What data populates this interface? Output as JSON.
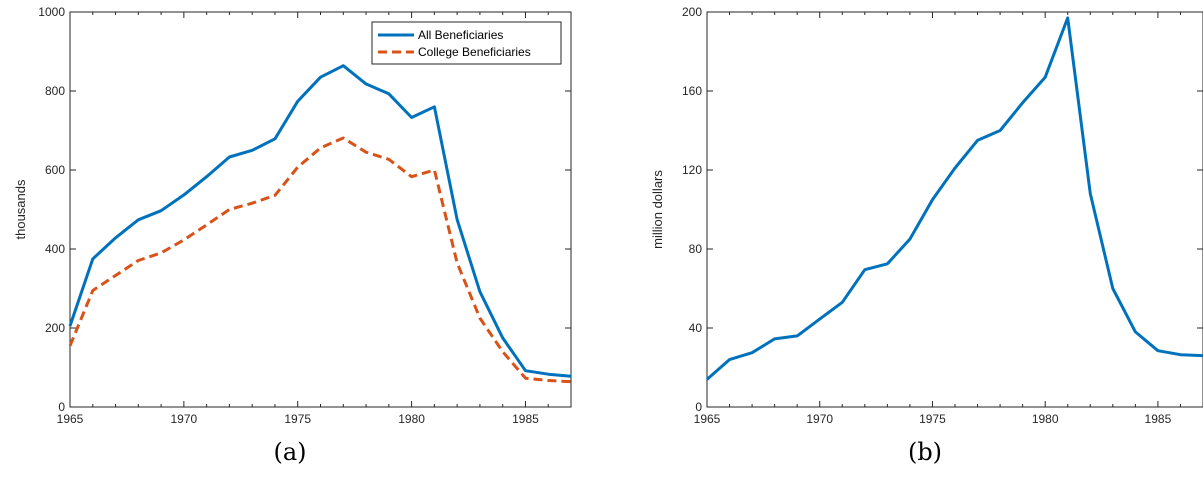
{
  "chart_data": [
    {
      "type": "line",
      "panel_label": "(a)",
      "ylabel": "thousands",
      "xlim": [
        1965,
        1987
      ],
      "ylim": [
        0,
        1000
      ],
      "xticks": [
        "1965",
        "1970",
        "1975",
        "1980",
        "1985"
      ],
      "yticks": [
        "0",
        "200",
        "400",
        "600",
        "800",
        "1000"
      ],
      "legend_position": "top-right",
      "x": [
        1965,
        1966,
        1967,
        1968,
        1969,
        1970,
        1971,
        1972,
        1973,
        1974,
        1975,
        1976,
        1977,
        1978,
        1979,
        1980,
        1981,
        1982,
        1983,
        1984,
        1985,
        1986,
        1987
      ],
      "series": [
        {
          "name": "All Beneficiaries",
          "color": "#0072BD",
          "style": "solid",
          "values": [
            205,
            375,
            428,
            474,
            497,
            537,
            583,
            633,
            650,
            679,
            774,
            835,
            864,
            818,
            793,
            733,
            760,
            475,
            292,
            175,
            92,
            83,
            78
          ]
        },
        {
          "name": "College Beneficiaries",
          "color": "#D95319",
          "style": "dashed",
          "values": [
            155,
            295,
            333,
            371,
            390,
            423,
            461,
            500,
            516,
            536,
            607,
            656,
            681,
            645,
            627,
            583,
            600,
            365,
            225,
            140,
            73,
            67,
            64
          ]
        }
      ]
    },
    {
      "type": "line",
      "panel_label": "(b)",
      "ylabel": "million dollars",
      "xlim": [
        1965,
        1987
      ],
      "ylim": [
        0,
        200
      ],
      "xticks": [
        "1965",
        "1970",
        "1975",
        "1980",
        "1985"
      ],
      "yticks": [
        "0",
        "40",
        "80",
        "120",
        "160",
        "200"
      ],
      "x": [
        1965,
        1966,
        1967,
        1968,
        1969,
        1970,
        1971,
        1972,
        1973,
        1974,
        1975,
        1976,
        1977,
        1978,
        1979,
        1980,
        1981,
        1982,
        1983,
        1984,
        1985,
        1986,
        1987
      ],
      "series": [
        {
          "color": "#0072BD",
          "style": "solid",
          "values": [
            14,
            24,
            27.5,
            34.5,
            36,
            44.5,
            53,
            69.5,
            72.5,
            85,
            105,
            121,
            135,
            140,
            154,
            167,
            197,
            108,
            60,
            38,
            28.5,
            26.5,
            26
          ]
        }
      ]
    }
  ]
}
